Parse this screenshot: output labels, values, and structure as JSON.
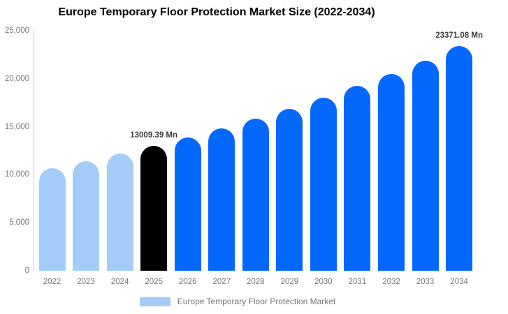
{
  "chart_data": {
    "type": "bar",
    "title": "Europe Temporary Floor Protection Market Size (2022-2034)",
    "categories": [
      "2022",
      "2023",
      "2024",
      "2025",
      "2026",
      "2027",
      "2028",
      "2029",
      "2030",
      "2031",
      "2032",
      "2033",
      "2034"
    ],
    "values": [
      10700,
      11420,
      12190,
      13009.39,
      13884,
      14818,
      15815,
      16878,
      18013,
      19225,
      20518,
      21898,
      23371.08
    ],
    "unit": "Mn",
    "bar_colors": [
      "#A3CDF8",
      "#A3CDF8",
      "#A3CDF8",
      "#000000",
      "#0568FD",
      "#0568FD",
      "#0568FD",
      "#0568FD",
      "#0568FD",
      "#0568FD",
      "#0568FD",
      "#0568FD",
      "#0568FD"
    ],
    "data_labels": [
      {
        "index": 3,
        "text": "13009.39 Mn"
      },
      {
        "index": 12,
        "text": "23371.08 Mn"
      }
    ],
    "ylim": [
      0,
      25000
    ],
    "yticks": [
      {
        "value": 0,
        "label": "0"
      },
      {
        "value": 5000,
        "label": "5,000"
      },
      {
        "value": 10000,
        "label": "10,000"
      },
      {
        "value": 15000,
        "label": "15,000"
      },
      {
        "value": 20000,
        "label": "20,000"
      },
      {
        "value": 25000,
        "label": "25,000"
      }
    ],
    "grid": "off",
    "legend": {
      "position": "bottom",
      "items": [
        {
          "label": "Europe Temporary Floor Protection Market",
          "color": "#A3CDF8"
        }
      ]
    },
    "colors": {
      "axis_line": "#cccccc",
      "tick_text": "#757575",
      "data_label_text": "#3b3b3b",
      "title_text": "#000000",
      "background": "#ffffff"
    }
  }
}
